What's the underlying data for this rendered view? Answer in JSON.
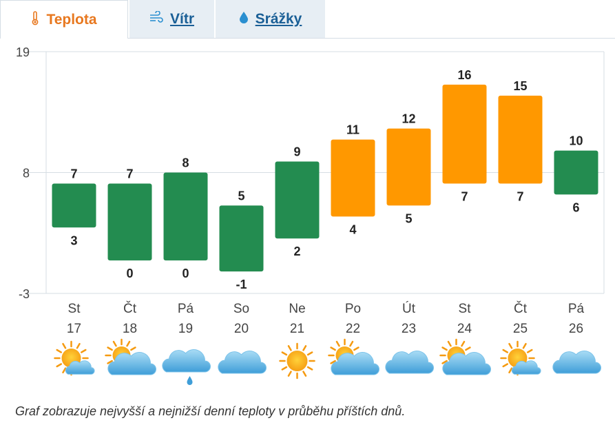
{
  "tabs": [
    {
      "label": "Teplota",
      "icon": "thermometer-icon",
      "active": true
    },
    {
      "label": "Vítr",
      "icon": "wind-icon",
      "active": false
    },
    {
      "label": "Srážky",
      "icon": "raindrop-icon",
      "active": false
    }
  ],
  "colors": {
    "accent": "#e8781f",
    "link": "#1a5f96",
    "bar_green": "#238c50",
    "bar_orange": "#ff9800",
    "grid": "#d6dde3"
  },
  "chart_data": {
    "type": "bar",
    "subtype": "floating-range",
    "title": "",
    "xlabel": "",
    "ylabel": "",
    "ylim": [
      -3,
      19
    ],
    "yticks": [
      19,
      8,
      -3
    ],
    "grid": true,
    "categories": [
      {
        "day": "St",
        "date": "17"
      },
      {
        "day": "Čt",
        "date": "18"
      },
      {
        "day": "Pá",
        "date": "19"
      },
      {
        "day": "So",
        "date": "20"
      },
      {
        "day": "Ne",
        "date": "21"
      },
      {
        "day": "Po",
        "date": "22"
      },
      {
        "day": "Út",
        "date": "23"
      },
      {
        "day": "St",
        "date": "24"
      },
      {
        "day": "Čt",
        "date": "25"
      },
      {
        "day": "Pá",
        "date": "26"
      }
    ],
    "series": [
      {
        "values": [
          7,
          7,
          8,
          5,
          9,
          11,
          12,
          16,
          15,
          10
        ]
      },
      {
        "values": [
          3,
          0,
          0,
          -1,
          2,
          4,
          5,
          7,
          7,
          6
        ]
      }
    ],
    "bar_colors": [
      "#238c50",
      "#238c50",
      "#238c50",
      "#238c50",
      "#238c50",
      "#ff9800",
      "#ff9800",
      "#ff9800",
      "#ff9800",
      "#238c50"
    ],
    "weather_icons": [
      "sun-behind-small-cloud-icon",
      "sun-behind-cloud-icon",
      "cloud-with-rain-icon",
      "cloud-icon",
      "sun-icon",
      "sun-behind-cloud-icon",
      "cloud-icon",
      "sun-behind-cloud-icon",
      "sun-behind-small-cloud-icon",
      "cloud-icon"
    ]
  },
  "caption": "Graf zobrazuje nejvyšší a nejnižší denní teploty v průběhu příštích dnů."
}
